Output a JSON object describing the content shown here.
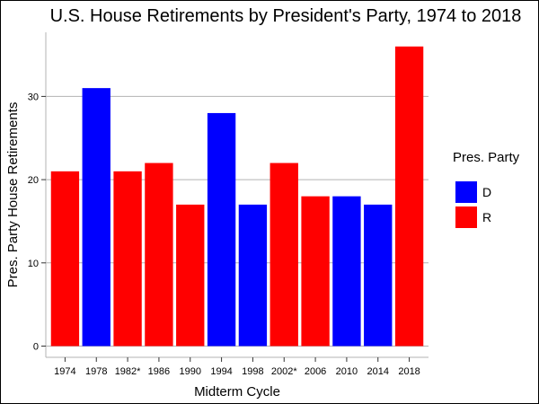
{
  "chart_data": {
    "type": "bar",
    "title": "U.S. House Retirements by President's Party, 1974 to 2018",
    "xlabel": "Midterm Cycle",
    "ylabel": "Pres. Party House Retirements",
    "categories": [
      "1974",
      "1978",
      "1982*",
      "1986",
      "1990",
      "1994",
      "1998",
      "2002*",
      "2006",
      "2010",
      "2014",
      "2018"
    ],
    "values": [
      21,
      31,
      21,
      22,
      17,
      28,
      17,
      22,
      18,
      18,
      17,
      36
    ],
    "party": [
      "R",
      "D",
      "R",
      "R",
      "R",
      "D",
      "D",
      "R",
      "R",
      "D",
      "D",
      "R"
    ],
    "ylim": [
      0,
      38
    ],
    "yticks": [
      0,
      10,
      20,
      30
    ],
    "grid": true,
    "legend": {
      "title": "Pres. Party",
      "placement": "right",
      "entries": [
        {
          "label": "D",
          "color": "#0000ff"
        },
        {
          "label": "R",
          "color": "#ff0000"
        }
      ]
    },
    "colors": {
      "D": "#0000ff",
      "R": "#ff0000",
      "grid": "#b3b3b3",
      "panel": "#ffffff"
    }
  }
}
